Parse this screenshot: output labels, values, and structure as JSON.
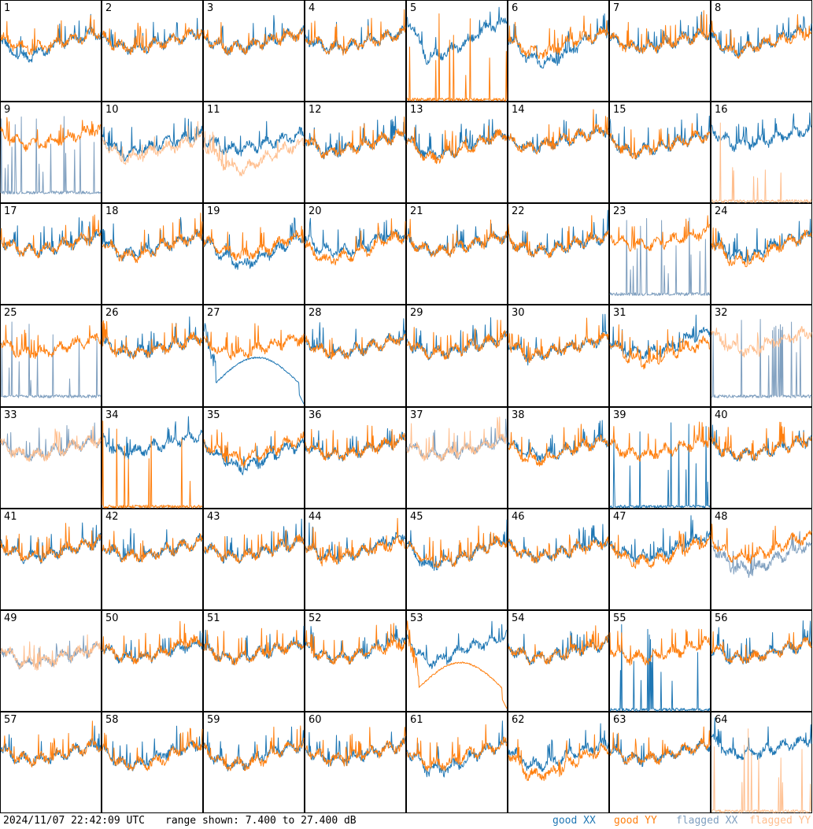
{
  "footer": {
    "timestamp": "2024/11/07 22:42:09 UTC",
    "range_label": "range shown: 7.400 to 27.400 dB"
  },
  "legend": [
    {
      "label": "good XX",
      "color": "#1f77b4"
    },
    {
      "label": "good YY",
      "color": "#ff7f0e"
    },
    {
      "label": "flagged XX",
      "color": "#7f9fbf"
    },
    {
      "label": "flagged YY",
      "color": "#ffbf8f"
    }
  ],
  "chart_data": {
    "type": "line",
    "layout": "8x8 small multiples",
    "ylim": [
      7.4,
      27.4
    ],
    "yunit": "dB",
    "series_names": [
      "good XX",
      "good YY",
      "flagged XX",
      "flagged YY"
    ],
    "tiles": [
      {
        "label": "1",
        "xx": "good",
        "yy": "good",
        "xx_level": [
          19,
          16,
          17,
          19,
          20,
          21
        ],
        "yy_level": [
          20,
          18,
          18,
          19,
          20,
          21
        ]
      },
      {
        "label": "2",
        "xx": "good",
        "yy": "good",
        "xx_level": [
          20,
          18,
          18,
          19,
          20,
          21
        ],
        "yy_level": [
          20,
          18,
          18,
          19,
          20,
          21
        ]
      },
      {
        "label": "3",
        "xx": "good",
        "yy": "good",
        "xx_level": [
          20,
          18,
          18,
          19,
          20,
          21
        ],
        "yy_level": [
          20,
          18,
          18,
          19,
          20,
          21
        ]
      },
      {
        "label": "4",
        "xx": "good",
        "yy": "good",
        "xx_level": [
          20,
          18,
          18,
          19,
          20,
          21
        ],
        "yy_level": [
          20,
          18,
          18,
          19,
          20,
          21
        ]
      },
      {
        "label": "5",
        "xx": "good",
        "yy": "good",
        "xx_level": [
          24,
          16,
          17,
          19,
          22,
          23
        ],
        "yy_level": "spikes"
      },
      {
        "label": "6",
        "xx": "good",
        "yy": "good",
        "xx_level": [
          20,
          16,
          15,
          17,
          20,
          21
        ],
        "yy_level": [
          20,
          17,
          17,
          19,
          20,
          21
        ]
      },
      {
        "label": "7",
        "xx": "good",
        "yy": "good",
        "xx_level": [
          20,
          18,
          18,
          19,
          20,
          21
        ],
        "yy_level": [
          20,
          18,
          18,
          19,
          20,
          21
        ]
      },
      {
        "label": "8",
        "xx": "good",
        "yy": "good",
        "xx_level": [
          20,
          17,
          18,
          19,
          21,
          22
        ],
        "yy_level": [
          20,
          17,
          18,
          19,
          20,
          21
        ]
      },
      {
        "label": "9",
        "xx": "flagged",
        "yy": "good",
        "xx_level": "spikes",
        "yy_level": [
          21,
          19,
          19,
          20,
          21,
          22
        ]
      },
      {
        "label": "10",
        "xx": "good",
        "yy": "flagged",
        "xx_level": [
          20,
          17,
          18,
          19,
          20,
          21
        ],
        "yy_level": [
          20,
          16,
          17,
          18,
          19,
          20
        ]
      },
      {
        "label": "11",
        "xx": "good",
        "yy": "flagged",
        "xx_level": [
          20,
          18,
          18,
          19,
          20,
          21
        ],
        "yy_level": [
          19,
          15,
          14,
          16,
          18,
          19
        ]
      },
      {
        "label": "12",
        "xx": "good",
        "yy": "good",
        "xx_level": [
          20,
          17,
          18,
          19,
          20,
          21
        ],
        "yy_level": [
          20,
          17,
          18,
          19,
          20,
          21
        ]
      },
      {
        "label": "13",
        "xx": "good",
        "yy": "good",
        "xx_level": [
          20,
          17,
          17,
          19,
          20,
          21
        ],
        "yy_level": [
          20,
          16,
          17,
          18,
          20,
          21
        ]
      },
      {
        "label": "14",
        "xx": "good",
        "yy": "good",
        "xx_level": [
          20,
          18,
          19,
          20,
          21,
          22
        ],
        "yy_level": [
          20,
          18,
          19,
          20,
          21,
          22
        ]
      },
      {
        "label": "15",
        "xx": "good",
        "yy": "good",
        "xx_level": [
          20,
          17,
          18,
          19,
          20,
          21
        ],
        "yy_level": [
          20,
          17,
          18,
          19,
          20,
          21
        ]
      },
      {
        "label": "16",
        "xx": "good",
        "yy": "flagged",
        "xx_level": [
          22,
          19,
          19,
          20,
          21,
          22
        ],
        "yy_level": "spikes"
      },
      {
        "label": "17",
        "xx": "good",
        "yy": "good",
        "xx_level": [
          20,
          18,
          18,
          19,
          20,
          21
        ],
        "yy_level": [
          20,
          18,
          18,
          19,
          20,
          21
        ]
      },
      {
        "label": "18",
        "xx": "good",
        "yy": "good",
        "xx_level": [
          20,
          17,
          18,
          19,
          20,
          21
        ],
        "yy_level": [
          20,
          17,
          17,
          19,
          20,
          21
        ]
      },
      {
        "label": "19",
        "xx": "good",
        "yy": "good",
        "xx_level": [
          20,
          17,
          15,
          17,
          19,
          21
        ],
        "yy_level": [
          20,
          18,
          17,
          18,
          20,
          21
        ]
      },
      {
        "label": "20",
        "xx": "good",
        "yy": "good",
        "xx_level": [
          20,
          18,
          18,
          19,
          21,
          21
        ],
        "yy_level": [
          19,
          16,
          17,
          18,
          20,
          21
        ]
      },
      {
        "label": "21",
        "xx": "good",
        "yy": "good",
        "xx_level": [
          20,
          18,
          18,
          19,
          20,
          21
        ],
        "yy_level": [
          20,
          18,
          18,
          19,
          20,
          21
        ]
      },
      {
        "label": "22",
        "xx": "good",
        "yy": "good",
        "xx_level": [
          20,
          18,
          18,
          19,
          20,
          21
        ],
        "yy_level": [
          20,
          18,
          18,
          19,
          20,
          21
        ]
      },
      {
        "label": "23",
        "xx": "flagged",
        "yy": "good",
        "xx_level": "spikes",
        "yy_level": [
          21,
          19,
          19,
          20,
          21,
          22
        ]
      },
      {
        "label": "24",
        "xx": "good",
        "yy": "good",
        "xx_level": [
          20,
          17,
          17,
          19,
          20,
          21
        ],
        "yy_level": [
          20,
          16,
          16,
          18,
          20,
          21
        ]
      },
      {
        "label": "25",
        "xx": "flagged",
        "yy": "good",
        "xx_level": "spikes",
        "yy_level": [
          20,
          18,
          18,
          19,
          20,
          21
        ]
      },
      {
        "label": "26",
        "xx": "good",
        "yy": "good",
        "xx_level": [
          20,
          18,
          18,
          19,
          20,
          21
        ],
        "yy_level": [
          20,
          18,
          18,
          19,
          20,
          21
        ]
      },
      {
        "label": "27",
        "xx": "good",
        "yy": "good",
        "xx_level": "dip-hump",
        "yy_level": [
          20,
          18,
          18,
          19,
          20,
          21
        ]
      },
      {
        "label": "28",
        "xx": "good",
        "yy": "good",
        "xx_level": [
          20,
          18,
          18,
          19,
          20,
          21
        ],
        "yy_level": [
          20,
          18,
          18,
          19,
          20,
          21
        ]
      },
      {
        "label": "29",
        "xx": "good",
        "yy": "good",
        "xx_level": [
          20,
          18,
          18,
          19,
          20,
          21
        ],
        "yy_level": [
          20,
          18,
          18,
          19,
          20,
          21
        ]
      },
      {
        "label": "30",
        "xx": "good",
        "yy": "good",
        "xx_level": [
          20,
          17,
          18,
          19,
          20,
          21
        ],
        "yy_level": [
          20,
          17,
          18,
          19,
          20,
          21
        ]
      },
      {
        "label": "31",
        "xx": "good",
        "yy": "good",
        "xx_level": [
          20,
          18,
          18,
          19,
          21,
          22
        ],
        "yy_level": [
          20,
          17,
          16,
          18,
          19,
          20
        ]
      },
      {
        "label": "32",
        "xx": "flagged",
        "yy": "flagged",
        "xx_level": "spikes",
        "yy_level": [
          22,
          19,
          18,
          20,
          21,
          22
        ]
      },
      {
        "label": "33",
        "xx": "flagged",
        "yy": "flagged",
        "xx_level": [
          20,
          18,
          18,
          19,
          20,
          21
        ],
        "yy_level": [
          20,
          18,
          18,
          19,
          20,
          21
        ]
      },
      {
        "label": "34",
        "xx": "good",
        "yy": "good",
        "xx_level": [
          21,
          18,
          19,
          20,
          21,
          22
        ],
        "yy_level": "spikes"
      },
      {
        "label": "35",
        "xx": "good",
        "yy": "good",
        "xx_level": [
          20,
          17,
          15,
          17,
          19,
          20
        ],
        "yy_level": [
          20,
          18,
          17,
          18,
          20,
          21
        ]
      },
      {
        "label": "36",
        "xx": "good",
        "yy": "good",
        "xx_level": [
          20,
          18,
          18,
          19,
          20,
          21
        ],
        "yy_level": [
          20,
          18,
          18,
          19,
          20,
          21
        ]
      },
      {
        "label": "37",
        "xx": "flagged",
        "yy": "flagged",
        "xx_level": [
          20,
          18,
          18,
          19,
          20,
          21
        ],
        "yy_level": [
          20,
          18,
          18,
          19,
          20,
          21
        ]
      },
      {
        "label": "38",
        "xx": "good",
        "yy": "good",
        "xx_level": [
          20,
          18,
          18,
          19,
          20,
          21
        ],
        "yy_level": [
          20,
          17,
          17,
          19,
          20,
          21
        ]
      },
      {
        "label": "39",
        "xx": "good",
        "yy": "good",
        "xx_level": "spikes",
        "yy_level": [
          20,
          18,
          18,
          19,
          20,
          21
        ]
      },
      {
        "label": "40",
        "xx": "good",
        "yy": "good",
        "xx_level": [
          20,
          18,
          18,
          19,
          20,
          21
        ],
        "yy_level": [
          20,
          18,
          18,
          19,
          20,
          21
        ]
      },
      {
        "label": "41",
        "xx": "good",
        "yy": "good",
        "xx_level": [
          20,
          18,
          18,
          19,
          20,
          21
        ],
        "yy_level": [
          20,
          18,
          18,
          19,
          20,
          21
        ]
      },
      {
        "label": "42",
        "xx": "good",
        "yy": "good",
        "xx_level": [
          20,
          18,
          18,
          19,
          20,
          21
        ],
        "yy_level": [
          20,
          18,
          18,
          19,
          20,
          21
        ]
      },
      {
        "label": "43",
        "xx": "good",
        "yy": "good",
        "xx_level": [
          20,
          18,
          18,
          19,
          20,
          21
        ],
        "yy_level": [
          20,
          18,
          18,
          19,
          20,
          21
        ]
      },
      {
        "label": "44",
        "xx": "good",
        "yy": "good",
        "xx_level": [
          20,
          18,
          18,
          19,
          21,
          22
        ],
        "yy_level": [
          20,
          17,
          18,
          19,
          20,
          21
        ]
      },
      {
        "label": "45",
        "xx": "good",
        "yy": "good",
        "xx_level": [
          20,
          16,
          17,
          18,
          20,
          21
        ],
        "yy_level": [
          20,
          17,
          17,
          18,
          20,
          21
        ]
      },
      {
        "label": "46",
        "xx": "good",
        "yy": "good",
        "xx_level": [
          20,
          18,
          18,
          19,
          20,
          21
        ],
        "yy_level": [
          20,
          18,
          18,
          19,
          20,
          21
        ]
      },
      {
        "label": "47",
        "xx": "good",
        "yy": "good",
        "xx_level": [
          20,
          18,
          18,
          19,
          21,
          22
        ],
        "yy_level": [
          20,
          17,
          17,
          18,
          20,
          21
        ]
      },
      {
        "label": "48",
        "xx": "flagged",
        "yy": "good",
        "xx_level": [
          20,
          16,
          15,
          17,
          19,
          20
        ],
        "yy_level": [
          21,
          18,
          18,
          19,
          21,
          22
        ]
      },
      {
        "label": "49",
        "xx": "flagged",
        "yy": "flagged",
        "xx_level": [
          20,
          17,
          17,
          18,
          19,
          20
        ],
        "yy_level": [
          20,
          17,
          17,
          18,
          19,
          20
        ]
      },
      {
        "label": "50",
        "xx": "good",
        "yy": "good",
        "xx_level": [
          20,
          18,
          18,
          19,
          20,
          21
        ],
        "yy_level": [
          20,
          18,
          18,
          19,
          21,
          21
        ]
      },
      {
        "label": "51",
        "xx": "good",
        "yy": "good",
        "xx_level": [
          20,
          18,
          18,
          19,
          20,
          21
        ],
        "yy_level": [
          20,
          18,
          18,
          19,
          20,
          21
        ]
      },
      {
        "label": "52",
        "xx": "good",
        "yy": "good",
        "xx_level": [
          20,
          18,
          18,
          19,
          21,
          22
        ],
        "yy_level": [
          20,
          18,
          18,
          19,
          20,
          21
        ]
      },
      {
        "label": "53",
        "xx": "good",
        "yy": "good",
        "xx_level": [
          22,
          17,
          18,
          20,
          21,
          22
        ],
        "yy_level": "dip-hump"
      },
      {
        "label": "54",
        "xx": "good",
        "yy": "good",
        "xx_level": [
          20,
          18,
          18,
          19,
          20,
          21
        ],
        "yy_level": [
          20,
          18,
          18,
          19,
          20,
          21
        ]
      },
      {
        "label": "55",
        "xx": "good",
        "yy": "good",
        "xx_level": "spikes",
        "yy_level": [
          20,
          18,
          18,
          19,
          20,
          21
        ]
      },
      {
        "label": "56",
        "xx": "good",
        "yy": "good",
        "xx_level": [
          20,
          18,
          18,
          19,
          20,
          21
        ],
        "yy_level": [
          20,
          18,
          18,
          19,
          20,
          21
        ]
      },
      {
        "label": "57",
        "xx": "good",
        "yy": "good",
        "xx_level": [
          20,
          18,
          18,
          19,
          20,
          21
        ],
        "yy_level": [
          20,
          18,
          18,
          19,
          20,
          21
        ]
      },
      {
        "label": "58",
        "xx": "good",
        "yy": "good",
        "xx_level": [
          20,
          17,
          17,
          19,
          20,
          21
        ],
        "yy_level": [
          20,
          17,
          17,
          18,
          20,
          21
        ]
      },
      {
        "label": "59",
        "xx": "good",
        "yy": "good",
        "xx_level": [
          20,
          17,
          17,
          19,
          20,
          21
        ],
        "yy_level": [
          20,
          17,
          17,
          18,
          20,
          21
        ]
      },
      {
        "label": "60",
        "xx": "good",
        "yy": "good",
        "xx_level": [
          20,
          18,
          18,
          19,
          20,
          21
        ],
        "yy_level": [
          20,
          18,
          18,
          19,
          20,
          21
        ]
      },
      {
        "label": "61",
        "xx": "good",
        "yy": "good",
        "xx_level": [
          20,
          16,
          16,
          18,
          20,
          21
        ],
        "yy_level": [
          20,
          17,
          17,
          19,
          20,
          21
        ]
      },
      {
        "label": "62",
        "xx": "good",
        "yy": "good",
        "xx_level": [
          20,
          17,
          17,
          19,
          20,
          21
        ],
        "yy_level": [
          19,
          15,
          15,
          17,
          19,
          20
        ]
      },
      {
        "label": "63",
        "xx": "good",
        "yy": "good",
        "xx_level": [
          20,
          18,
          18,
          19,
          20,
          21
        ],
        "yy_level": [
          20,
          18,
          18,
          19,
          20,
          21
        ]
      },
      {
        "label": "64",
        "xx": "good",
        "yy": "flagged",
        "xx_level": [
          22,
          19,
          19,
          20,
          21,
          22
        ],
        "yy_level": "spikes"
      }
    ]
  }
}
